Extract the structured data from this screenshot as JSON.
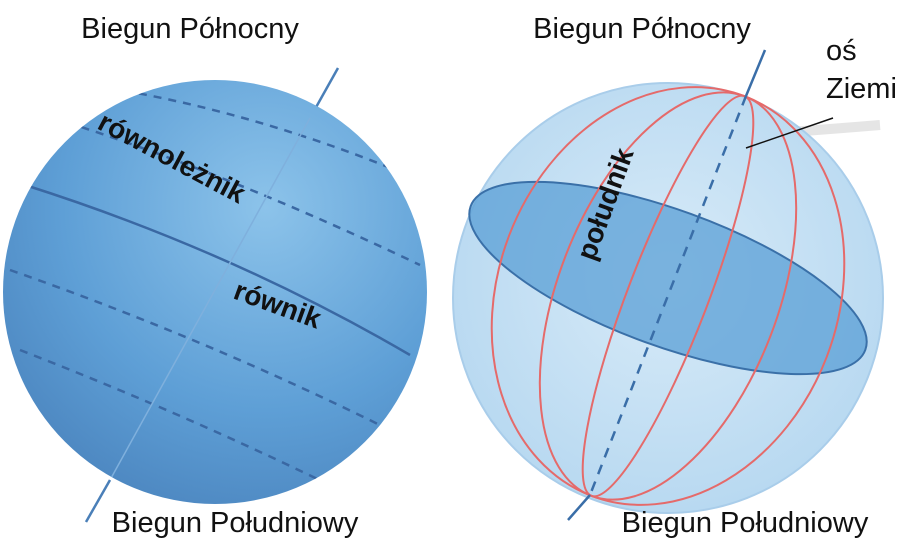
{
  "left_globe": {
    "north_pole": "Biegun Północny",
    "south_pole": "Biegun Południowy",
    "parallel": "równoleżnik",
    "equator": "równik"
  },
  "right_globe": {
    "north_pole": "Biegun Północny",
    "south_pole": "Biegun Południowy",
    "axis_label": [
      "oś",
      "Ziemi"
    ],
    "meridian": "południk"
  }
}
